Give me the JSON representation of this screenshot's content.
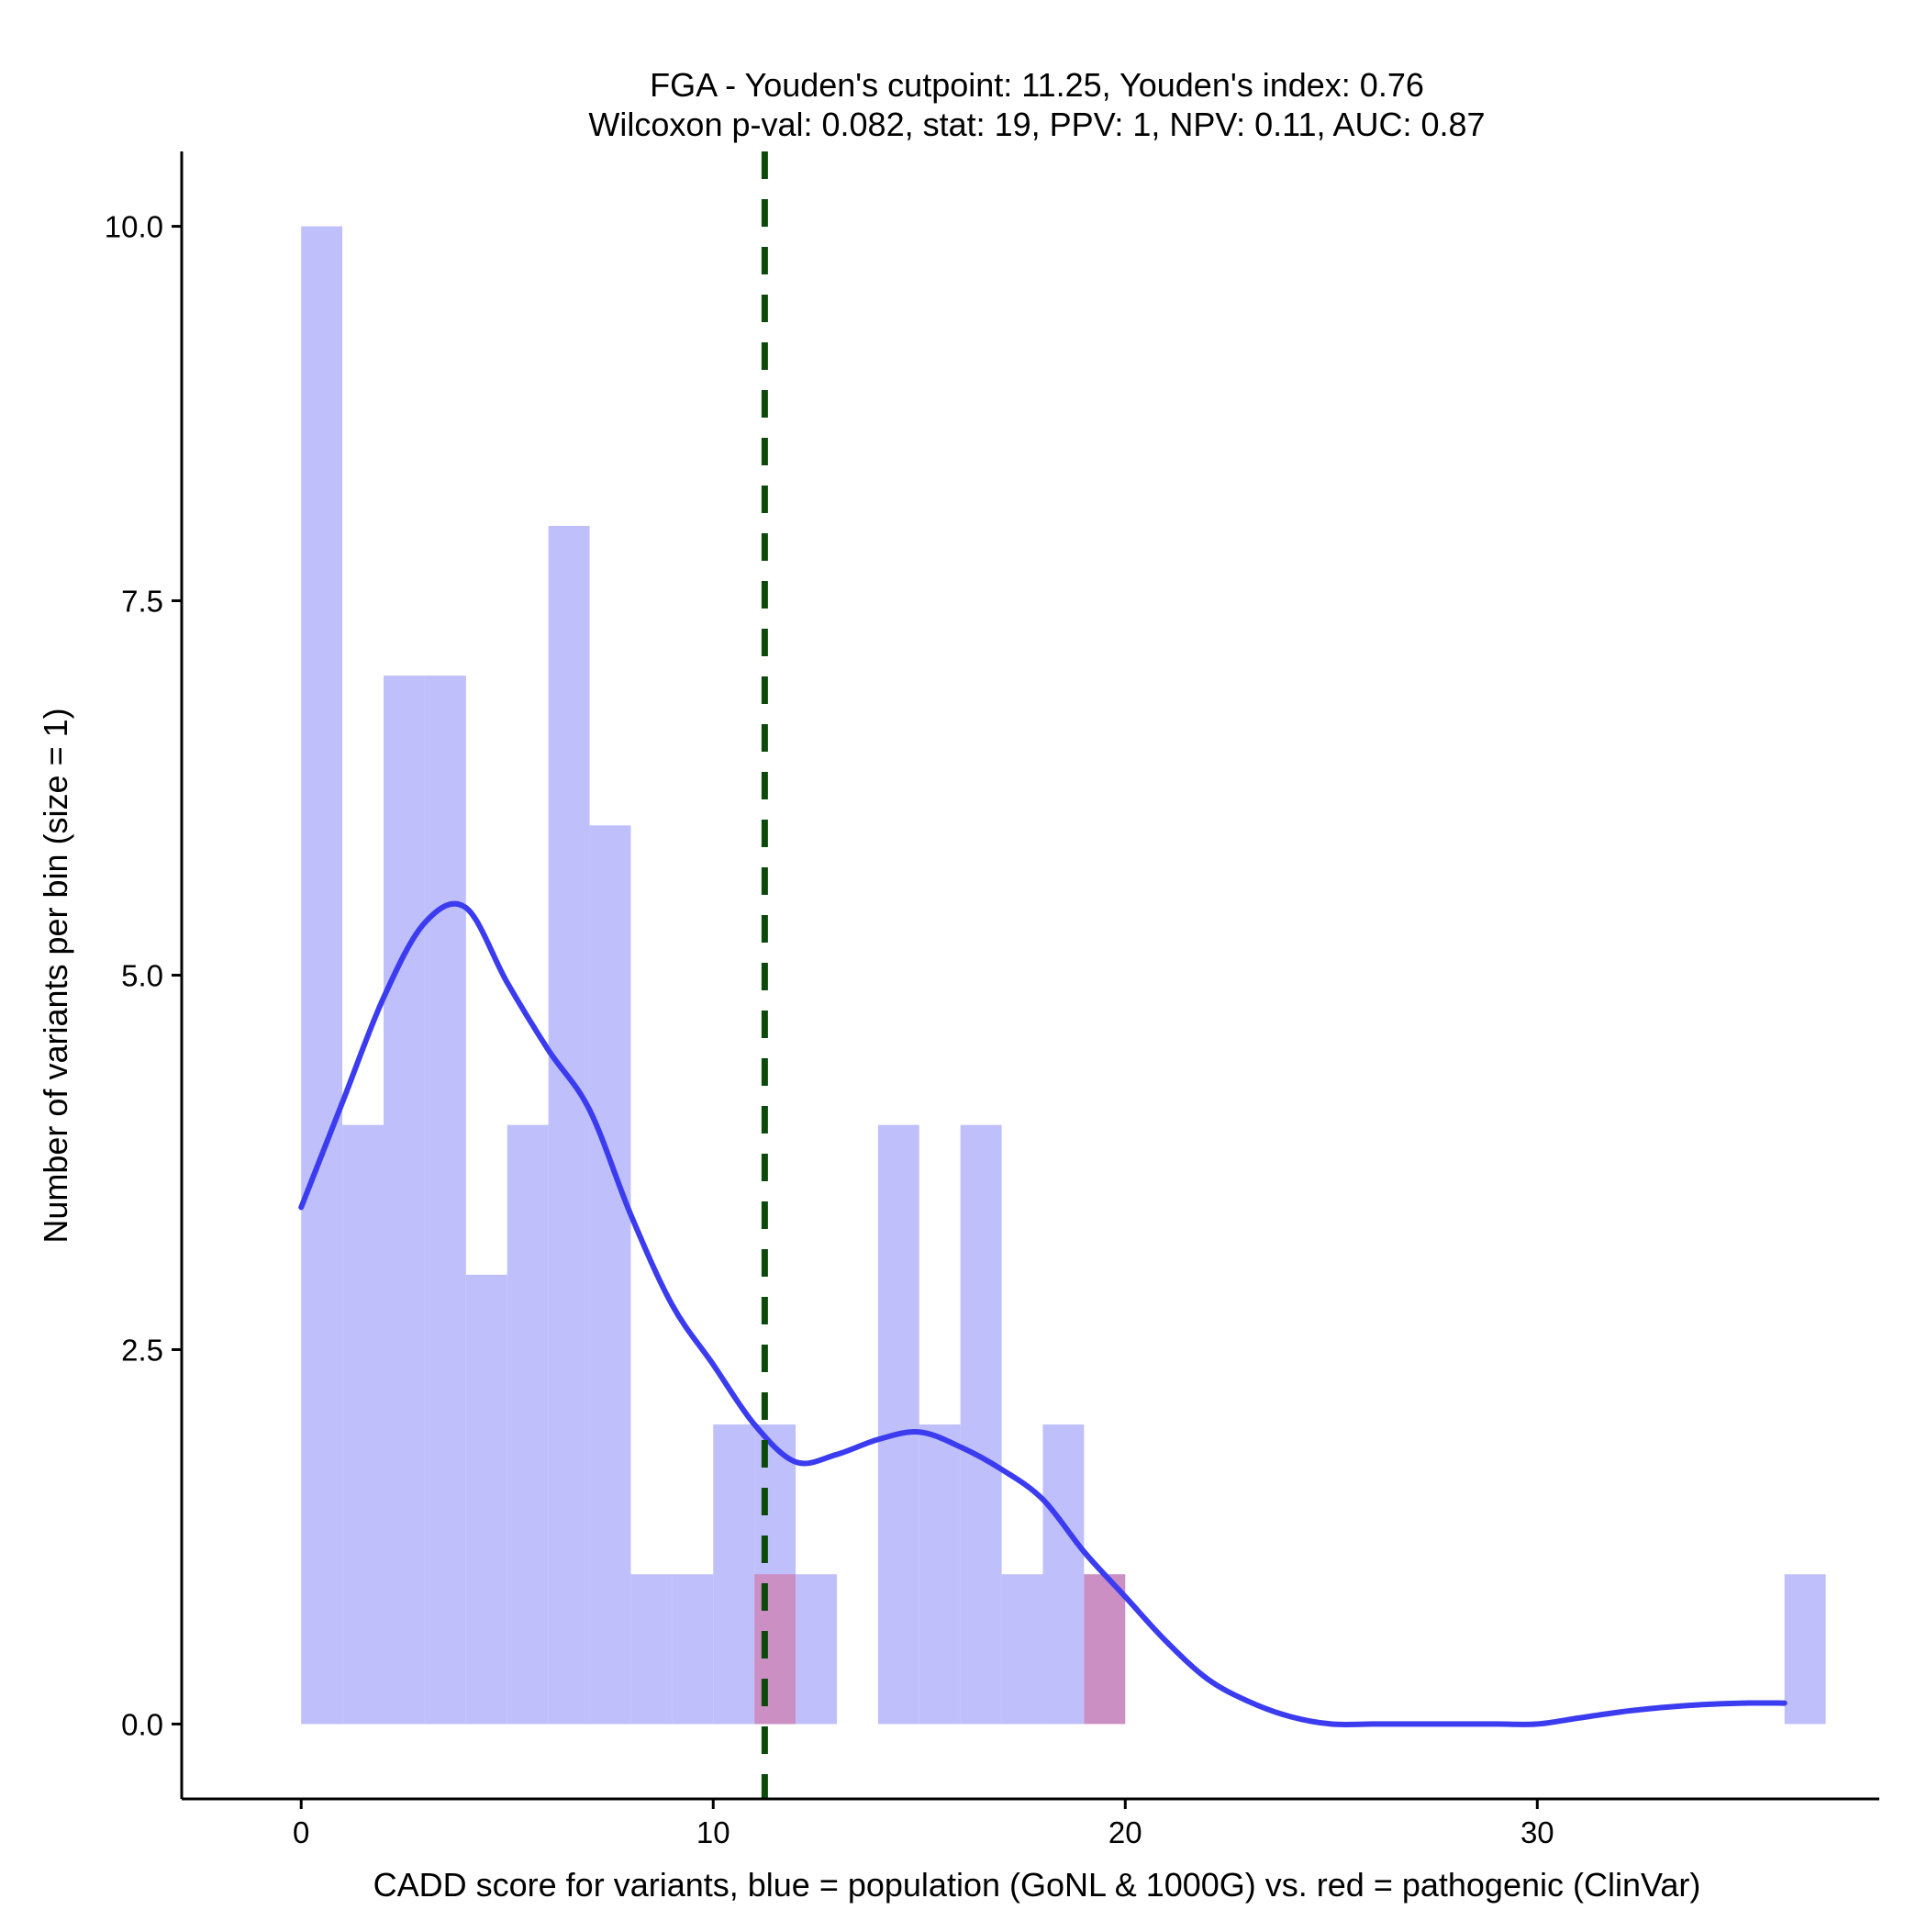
{
  "chart_data": {
    "type": "bar",
    "title": "FGA - Youden's cutpoint: 11.25, Youden's index: 0.76",
    "subtitle": "Wilcoxon p-val: 0.082, stat: 19, PPV: 1, NPV: 0.11, AUC: 0.87",
    "xlabel": "CADD score for variants, blue = population (GoNL & 1000G) vs. red = pathogenic (ClinVar)",
    "ylabel": "Number of variants per bin (size = 1)",
    "xlim": [
      -2.9,
      38.3
    ],
    "ylim": [
      -0.5,
      10.5
    ],
    "x_ticks": [
      0,
      10,
      20,
      30
    ],
    "x_tick_labels": [
      "0",
      "10",
      "20",
      "30"
    ],
    "y_ticks": [
      0,
      2.5,
      5,
      7.5,
      10
    ],
    "y_tick_labels": [
      "0.0",
      "2.5",
      "5.0",
      "7.5",
      "10.0"
    ],
    "bin_width": 1,
    "series": [
      {
        "name": "population (GoNL & 1000G)",
        "color": "#bfbffc",
        "bins": [
          {
            "x0": 0,
            "count": 10
          },
          {
            "x0": 1,
            "count": 4
          },
          {
            "x0": 2,
            "count": 7
          },
          {
            "x0": 3,
            "count": 7
          },
          {
            "x0": 4,
            "count": 3
          },
          {
            "x0": 5,
            "count": 4
          },
          {
            "x0": 6,
            "count": 8
          },
          {
            "x0": 7,
            "count": 6
          },
          {
            "x0": 8,
            "count": 1
          },
          {
            "x0": 9,
            "count": 1
          },
          {
            "x0": 10,
            "count": 2
          },
          {
            "x0": 11,
            "count": 2
          },
          {
            "x0": 12,
            "count": 1
          },
          {
            "x0": 14,
            "count": 4
          },
          {
            "x0": 15,
            "count": 2
          },
          {
            "x0": 16,
            "count": 4
          },
          {
            "x0": 17,
            "count": 1
          },
          {
            "x0": 18,
            "count": 2
          },
          {
            "x0": 36,
            "count": 1
          }
        ]
      },
      {
        "name": "pathogenic (ClinVar)",
        "color": "#cc8fc4",
        "bins": [
          {
            "x0": 11,
            "count": 1
          },
          {
            "x0": 19,
            "count": 1
          }
        ]
      }
    ],
    "density_line": {
      "name": "population density",
      "color": "#3b3bf0",
      "x": [
        0,
        1,
        2,
        3,
        4,
        5,
        6,
        7,
        8,
        9,
        10,
        11,
        12,
        13,
        14,
        15,
        16,
        17,
        18,
        19,
        20,
        21,
        22,
        23,
        24,
        25,
        26,
        27,
        28,
        29,
        30,
        31,
        32,
        33,
        34,
        35,
        36
      ],
      "y": [
        3.45,
        4.15,
        4.85,
        5.35,
        5.45,
        4.95,
        4.5,
        4.1,
        3.4,
        2.8,
        2.4,
        2.0,
        1.75,
        1.8,
        1.9,
        1.95,
        1.85,
        1.7,
        1.5,
        1.15,
        0.85,
        0.55,
        0.3,
        0.15,
        0.05,
        0,
        0,
        0,
        0,
        0,
        0,
        0.04,
        0.08,
        0.11,
        0.13,
        0.14,
        0.14
      ]
    },
    "cutpoint": {
      "label": "Youden's cutpoint",
      "x": 11.25,
      "color": "#0b4a0b"
    },
    "grid": false,
    "legend": "none"
  }
}
